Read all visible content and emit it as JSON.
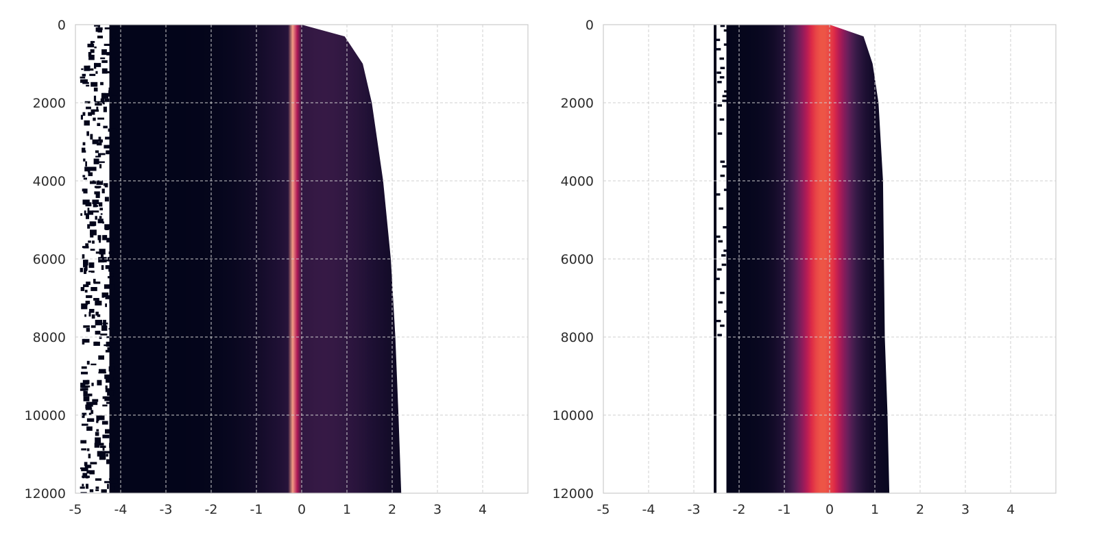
{
  "chart_data": [
    {
      "type": "heatmap",
      "title": "",
      "xlabel": "",
      "ylabel": "",
      "xlim": [
        -5,
        5
      ],
      "ylim": [
        12000,
        0
      ],
      "y_inverted": true,
      "grid": true,
      "grid_style": "dashed",
      "x_ticks": [
        -5,
        -4,
        -3,
        -2,
        -1,
        0,
        1,
        2,
        3,
        4
      ],
      "y_ticks": [
        0,
        2000,
        4000,
        6000,
        8000,
        10000,
        12000
      ],
      "x_tick_labels": [
        "-5",
        "-4",
        "-3",
        "-2",
        "-1",
        "0",
        "1",
        "2",
        "3",
        "4"
      ],
      "y_tick_labels": [
        "0",
        "2000",
        "4000",
        "6000",
        "8000",
        "10000",
        "12000"
      ],
      "colormap": "rocket",
      "peak_x": -0.17,
      "peak_width": 0.07,
      "base_intensity": 0.25,
      "left_edge": -4.25,
      "sparse_left_x": -4.9,
      "right_edge_profile": [
        {
          "y": 0,
          "x": 0.0
        },
        {
          "y": 300,
          "x": 0.95
        },
        {
          "y": 1000,
          "x": 1.35
        },
        {
          "y": 2000,
          "x": 1.55
        },
        {
          "y": 4000,
          "x": 1.8
        },
        {
          "y": 6000,
          "x": 1.97
        },
        {
          "y": 8000,
          "x": 2.07
        },
        {
          "y": 10000,
          "x": 2.14
        },
        {
          "y": 12000,
          "x": 2.2
        }
      ]
    },
    {
      "type": "heatmap",
      "title": "",
      "xlabel": "",
      "ylabel": "",
      "xlim": [
        -5,
        5
      ],
      "ylim": [
        12000,
        0
      ],
      "y_inverted": true,
      "grid": true,
      "grid_style": "dashed",
      "x_ticks": [
        -5,
        -4,
        -3,
        -2,
        -1,
        0,
        1,
        2,
        3,
        4
      ],
      "y_ticks": [
        0,
        2000,
        4000,
        6000,
        8000,
        10000,
        12000
      ],
      "x_tick_labels": [
        "-5",
        "-4",
        "-3",
        "-2",
        "-1",
        "0",
        "1",
        "2",
        "3",
        "4"
      ],
      "y_tick_labels": [
        "0",
        "2000",
        "4000",
        "6000",
        "8000",
        "10000",
        "12000"
      ],
      "colormap": "rocket",
      "peak_x": -0.15,
      "peak_width": 0.45,
      "base_intensity": 0.1,
      "left_edge": -2.28,
      "isolated_column_x": -2.53,
      "right_edge_profile": [
        {
          "y": 0,
          "x": 0.0
        },
        {
          "y": 300,
          "x": 0.75
        },
        {
          "y": 1000,
          "x": 0.95
        },
        {
          "y": 2000,
          "x": 1.08
        },
        {
          "y": 4000,
          "x": 1.18
        },
        {
          "y": 8000,
          "x": 1.22
        },
        {
          "y": 10000,
          "x": 1.28
        },
        {
          "y": 12000,
          "x": 1.32
        }
      ]
    }
  ]
}
